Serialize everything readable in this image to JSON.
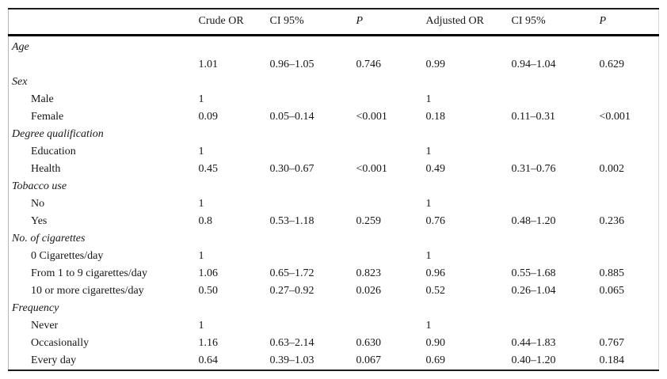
{
  "table": {
    "columns": [
      "",
      "Crude OR",
      "CI 95%",
      "P",
      "Adjusted OR",
      "CI 95%",
      "P"
    ],
    "rows": [
      {
        "label": "Age",
        "type": "section",
        "values": [
          "",
          "",
          "",
          "",
          "",
          ""
        ]
      },
      {
        "label": "",
        "type": "data",
        "values": [
          "1.01",
          "0.96–1.05",
          "0.746",
          "0.99",
          "0.94–1.04",
          "0.629"
        ]
      },
      {
        "label": "Sex",
        "type": "section",
        "values": [
          "",
          "",
          "",
          "",
          "",
          ""
        ]
      },
      {
        "label": "Male",
        "type": "data",
        "values": [
          "1",
          "",
          "",
          "1",
          "",
          ""
        ]
      },
      {
        "label": "Female",
        "type": "data",
        "values": [
          "0.09",
          "0.05–0.14",
          "<0.001",
          "0.18",
          "0.11–0.31",
          "<0.001"
        ]
      },
      {
        "label": "Degree qualification",
        "type": "section",
        "values": [
          "",
          "",
          "",
          "",
          "",
          ""
        ]
      },
      {
        "label": "Education",
        "type": "data",
        "values": [
          "1",
          "",
          "",
          "1",
          "",
          ""
        ]
      },
      {
        "label": "Health",
        "type": "data",
        "values": [
          "0.45",
          "0.30–0.67",
          "<0.001",
          "0.49",
          "0.31–0.76",
          "0.002"
        ]
      },
      {
        "label": "Tobacco use",
        "type": "section",
        "values": [
          "",
          "",
          "",
          "",
          "",
          ""
        ]
      },
      {
        "label": "No",
        "type": "data",
        "values": [
          "1",
          "",
          "",
          "1",
          "",
          ""
        ]
      },
      {
        "label": "Yes",
        "type": "data",
        "values": [
          "0.8",
          "0.53–1.18",
          "0.259",
          "0.76",
          "0.48–1.20",
          "0.236"
        ]
      },
      {
        "label": "No. of cigarettes",
        "type": "section",
        "values": [
          "",
          "",
          "",
          "",
          "",
          ""
        ]
      },
      {
        "label": "0 Cigarettes/day",
        "type": "data",
        "values": [
          "1",
          "",
          "",
          "1",
          "",
          ""
        ]
      },
      {
        "label": "From 1 to 9 cigarettes/day",
        "type": "data",
        "values": [
          "1.06",
          "0.65–1.72",
          "0.823",
          "0.96",
          "0.55–1.68",
          "0.885"
        ]
      },
      {
        "label": "10 or more cigarettes/day",
        "type": "data",
        "values": [
          "0.50",
          "0.27–0.92",
          "0.026",
          "0.52",
          "0.26–1.04",
          "0.065"
        ]
      },
      {
        "label": "Frequency",
        "type": "section",
        "values": [
          "",
          "",
          "",
          "",
          "",
          ""
        ]
      },
      {
        "label": "Never",
        "type": "data",
        "values": [
          "1",
          "",
          "",
          "1",
          "",
          ""
        ]
      },
      {
        "label": "Occasionally",
        "type": "data",
        "values": [
          "1.16",
          "0.63–2.14",
          "0.630",
          "0.90",
          "0.44–1.83",
          "0.767"
        ]
      },
      {
        "label": "Every day",
        "type": "data",
        "values": [
          "0.64",
          "0.39–1.03",
          "0.067",
          "0.69",
          "0.40–1.20",
          "0.184"
        ]
      }
    ]
  }
}
